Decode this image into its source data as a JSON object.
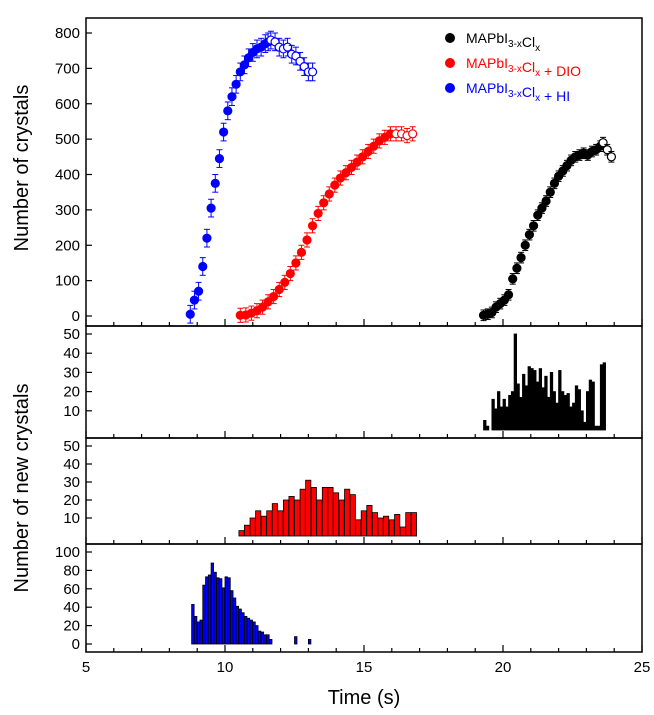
{
  "chart_data": {
    "type": "scatter+bar",
    "x_axis": {
      "label": "Time (s)",
      "range": [
        5,
        25
      ],
      "ticks": [
        "5",
        "10",
        "15",
        "20",
        "25"
      ]
    },
    "colors": {
      "black": "#000000",
      "red": "#ff0000",
      "blue": "#0000ff"
    },
    "legend": {
      "placement": "top-right",
      "entries": [
        {
          "id": "black",
          "main": "MAPbI",
          "sub1": "3-x",
          "mid": "Cl",
          "sub2": "x",
          "suffix": ""
        },
        {
          "id": "red",
          "main": "MAPbI",
          "sub1": "3-x",
          "mid": "Cl",
          "sub2": "x",
          "suffix": " + DIO"
        },
        {
          "id": "blue",
          "main": "MAPbI",
          "sub1": "3-x",
          "mid": "Cl",
          "sub2": "x",
          "suffix": " + HI"
        }
      ]
    },
    "top_panel": {
      "type": "scatter",
      "y_label": "Number of crystals",
      "y_range": [
        0,
        800
      ],
      "y_ticks": [
        "0",
        "100",
        "200",
        "300",
        "400",
        "500",
        "600",
        "700",
        "800"
      ],
      "series": [
        {
          "id": "blue",
          "filled": [
            [
              8.75,
              5
            ],
            [
              8.9,
              45
            ],
            [
              9.05,
              70
            ],
            [
              9.2,
              140
            ],
            [
              9.35,
              220
            ],
            [
              9.5,
              305
            ],
            [
              9.65,
              375
            ],
            [
              9.8,
              445
            ],
            [
              9.95,
              520
            ],
            [
              10.1,
              580
            ],
            [
              10.25,
              620
            ],
            [
              10.4,
              655
            ],
            [
              10.55,
              690
            ],
            [
              10.7,
              710
            ],
            [
              10.85,
              730
            ],
            [
              11.0,
              745
            ],
            [
              11.15,
              755
            ],
            [
              11.3,
              760
            ],
            [
              11.45,
              770
            ],
            [
              11.55,
              775
            ]
          ],
          "open": [
            [
              11.65,
              780
            ],
            [
              11.8,
              775
            ],
            [
              11.95,
              760
            ],
            [
              12.1,
              755
            ],
            [
              12.25,
              760
            ],
            [
              12.4,
              740
            ],
            [
              12.55,
              735
            ],
            [
              12.7,
              720
            ],
            [
              12.85,
              705
            ],
            [
              13.0,
              690
            ],
            [
              13.15,
              690
            ]
          ],
          "error": 25
        },
        {
          "id": "red",
          "filled": [
            [
              10.55,
              2
            ],
            [
              10.75,
              3
            ],
            [
              10.95,
              8
            ],
            [
              11.15,
              15
            ],
            [
              11.35,
              25
            ],
            [
              11.55,
              40
            ],
            [
              11.75,
              55
            ],
            [
              11.95,
              75
            ],
            [
              12.15,
              95
            ],
            [
              12.35,
              120
            ],
            [
              12.55,
              150
            ],
            [
              12.75,
              180
            ],
            [
              12.95,
              215
            ],
            [
              13.15,
              255
            ],
            [
              13.35,
              290
            ],
            [
              13.55,
              320
            ],
            [
              13.75,
              345
            ],
            [
              13.95,
              370
            ],
            [
              14.15,
              390
            ],
            [
              14.35,
              405
            ],
            [
              14.55,
              420
            ],
            [
              14.75,
              435
            ],
            [
              14.95,
              450
            ],
            [
              15.15,
              465
            ],
            [
              15.35,
              480
            ],
            [
              15.55,
              495
            ],
            [
              15.75,
              505
            ],
            [
              15.95,
              515
            ]
          ],
          "open": [
            [
              16.15,
              515
            ],
            [
              16.35,
              515
            ],
            [
              16.55,
              510
            ],
            [
              16.75,
              515
            ]
          ],
          "error": 20
        },
        {
          "id": "black",
          "filled": [
            [
              19.3,
              2
            ],
            [
              19.45,
              5
            ],
            [
              19.6,
              10
            ],
            [
              19.75,
              25
            ],
            [
              19.9,
              35
            ],
            [
              20.05,
              45
            ],
            [
              20.2,
              60
            ],
            [
              20.35,
              105
            ],
            [
              20.5,
              135
            ],
            [
              20.65,
              165
            ],
            [
              20.8,
              200
            ],
            [
              20.95,
              230
            ],
            [
              21.1,
              255
            ],
            [
              21.25,
              285
            ],
            [
              21.4,
              305
            ],
            [
              21.55,
              325
            ],
            [
              21.7,
              350
            ],
            [
              21.85,
              375
            ],
            [
              22.0,
              395
            ],
            [
              22.15,
              410
            ],
            [
              22.3,
              425
            ],
            [
              22.45,
              440
            ],
            [
              22.6,
              450
            ],
            [
              22.75,
              455
            ],
            [
              22.9,
              460
            ],
            [
              23.05,
              455
            ],
            [
              23.2,
              465
            ],
            [
              23.35,
              470
            ],
            [
              23.5,
              480
            ]
          ],
          "open": [
            [
              23.6,
              490
            ],
            [
              23.75,
              470
            ],
            [
              23.9,
              450
            ]
          ],
          "error": 15
        }
      ]
    },
    "middle_label": "Number of new crystals",
    "bar_panels": [
      {
        "id": "black",
        "y_range": [
          0,
          50
        ],
        "y_ticks": [
          "10",
          "20",
          "30",
          "40",
          "50"
        ],
        "bin_width": 0.1,
        "bars": [
          [
            19.3,
            5
          ],
          [
            19.4,
            2
          ],
          [
            19.6,
            16
          ],
          [
            19.7,
            11
          ],
          [
            19.8,
            20
          ],
          [
            19.9,
            12
          ],
          [
            20.0,
            16
          ],
          [
            20.1,
            12
          ],
          [
            20.2,
            18
          ],
          [
            20.3,
            20
          ],
          [
            20.4,
            50
          ],
          [
            20.5,
            24
          ],
          [
            20.6,
            17
          ],
          [
            20.7,
            29
          ],
          [
            20.8,
            23
          ],
          [
            20.9,
            33
          ],
          [
            21.0,
            32
          ],
          [
            21.1,
            31
          ],
          [
            21.2,
            25
          ],
          [
            21.3,
            32
          ],
          [
            21.4,
            22
          ],
          [
            21.5,
            28
          ],
          [
            21.6,
            17
          ],
          [
            21.7,
            30
          ],
          [
            21.8,
            20
          ],
          [
            21.9,
            14
          ],
          [
            22.0,
            31
          ],
          [
            22.1,
            20
          ],
          [
            22.2,
            18
          ],
          [
            22.3,
            19
          ],
          [
            22.4,
            12
          ],
          [
            22.5,
            14
          ],
          [
            22.6,
            23
          ],
          [
            22.7,
            21
          ],
          [
            22.8,
            10
          ],
          [
            22.9,
            4
          ],
          [
            23.0,
            20
          ],
          [
            23.1,
            26
          ],
          [
            23.2,
            25
          ],
          [
            23.3,
            2
          ],
          [
            23.4,
            2
          ],
          [
            23.5,
            34
          ],
          [
            23.6,
            35
          ]
        ]
      },
      {
        "id": "red",
        "y_range": [
          0,
          50
        ],
        "y_ticks": [
          "10",
          "20",
          "30",
          "40",
          "50"
        ],
        "bin_width": 0.2,
        "bars": [
          [
            10.5,
            3
          ],
          [
            10.7,
            6
          ],
          [
            10.9,
            10
          ],
          [
            11.1,
            14
          ],
          [
            11.3,
            11
          ],
          [
            11.5,
            14
          ],
          [
            11.7,
            18
          ],
          [
            11.9,
            14
          ],
          [
            12.1,
            20
          ],
          [
            12.3,
            22
          ],
          [
            12.5,
            20
          ],
          [
            12.7,
            26
          ],
          [
            12.9,
            31
          ],
          [
            13.1,
            27
          ],
          [
            13.3,
            20
          ],
          [
            13.5,
            27
          ],
          [
            13.7,
            27
          ],
          [
            13.9,
            24
          ],
          [
            14.1,
            20
          ],
          [
            14.3,
            26
          ],
          [
            14.5,
            23
          ],
          [
            14.7,
            9
          ],
          [
            14.9,
            14
          ],
          [
            15.1,
            17
          ],
          [
            15.3,
            13
          ],
          [
            15.5,
            10
          ],
          [
            15.7,
            11
          ],
          [
            15.9,
            9
          ],
          [
            16.1,
            12
          ],
          [
            16.3,
            5
          ],
          [
            16.5,
            13
          ],
          [
            16.7,
            13
          ]
        ]
      },
      {
        "id": "blue",
        "y_range": [
          0,
          100
        ],
        "y_ticks": [
          "0",
          "20",
          "40",
          "60",
          "80",
          "100"
        ],
        "bin_width": 0.1,
        "bars": [
          [
            8.8,
            43
          ],
          [
            8.9,
            30
          ],
          [
            9.0,
            24
          ],
          [
            9.1,
            26
          ],
          [
            9.2,
            64
          ],
          [
            9.3,
            73
          ],
          [
            9.4,
            75
          ],
          [
            9.5,
            88
          ],
          [
            9.6,
            78
          ],
          [
            9.7,
            72
          ],
          [
            9.8,
            71
          ],
          [
            9.9,
            61
          ],
          [
            10.0,
            73
          ],
          [
            10.1,
            72
          ],
          [
            10.2,
            58
          ],
          [
            10.3,
            50
          ],
          [
            10.4,
            41
          ],
          [
            10.5,
            38
          ],
          [
            10.6,
            34
          ],
          [
            10.7,
            30
          ],
          [
            10.8,
            28
          ],
          [
            10.9,
            26
          ],
          [
            11.0,
            24
          ],
          [
            11.1,
            20
          ],
          [
            11.2,
            14
          ],
          [
            11.3,
            13
          ],
          [
            11.4,
            10
          ],
          [
            11.5,
            10
          ],
          [
            11.6,
            5
          ],
          [
            12.5,
            8
          ],
          [
            13.0,
            5
          ]
        ]
      }
    ]
  }
}
